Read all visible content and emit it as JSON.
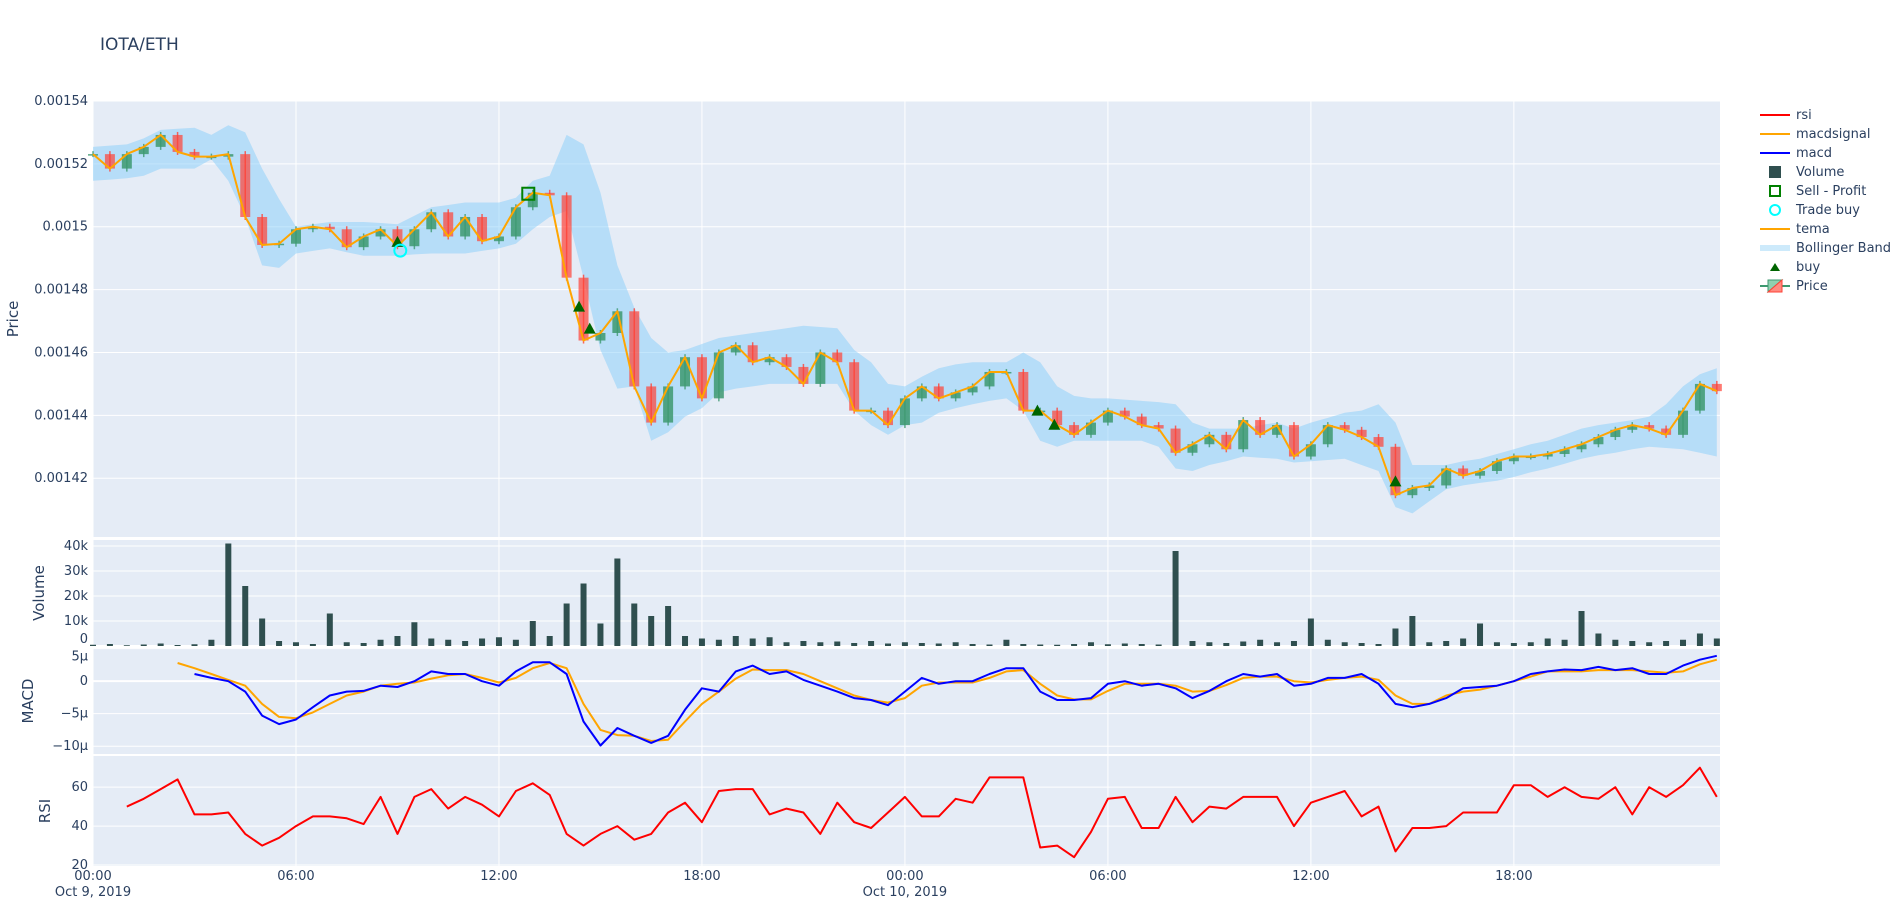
{
  "title": "IOTA/ETH",
  "colors": {
    "plot_bg": "#e5ecf6",
    "grid": "#ffffff",
    "increasing": "#3d9970",
    "decreasing": "#ff4136",
    "tema": "#ffa500",
    "bollinger": "#87cefa",
    "volume": "#2f4f4f",
    "macd": "#0000ff",
    "macdsignal": "#ffa500",
    "rsi": "#ff0000",
    "buy": "#006400",
    "sell": "#008000",
    "trade_buy": "#00ffff"
  },
  "legend": [
    {
      "name": "rsi",
      "icon": "line",
      "color": "#ff0000"
    },
    {
      "name": "macdsignal",
      "icon": "line",
      "color": "#ffa500"
    },
    {
      "name": "macd",
      "icon": "line",
      "color": "#0000ff"
    },
    {
      "name": "Volume",
      "icon": "square-filled",
      "color": "#2f4f4f"
    },
    {
      "name": "Sell - Profit",
      "icon": "square-open",
      "color": "#008000"
    },
    {
      "name": "Trade buy",
      "icon": "circle-open",
      "color": "#00ffff"
    },
    {
      "name": "tema",
      "icon": "line",
      "color": "#ffa500"
    },
    {
      "name": "Bollinger Band",
      "icon": "band",
      "color": "#87cefa"
    },
    {
      "name": "buy",
      "icon": "triangle-up",
      "color": "#006400"
    },
    {
      "name": "Price",
      "icon": "candlestick",
      "color": "#3d9970"
    }
  ],
  "chart_data": {
    "type": "candlestick+line+bar",
    "x_axis": {
      "start": "2019-10-09 00:00",
      "interval_minutes": 30,
      "range": [
        "2019-10-09 00:00",
        "2019-10-10 23:55"
      ],
      "ticks": [
        {
          "t": 0,
          "label": "00:00",
          "sub": "Oct 9, 2019"
        },
        {
          "t": 6,
          "label": "06:00",
          "sub": ""
        },
        {
          "t": 12,
          "label": "12:00",
          "sub": ""
        },
        {
          "t": 18,
          "label": "18:00",
          "sub": ""
        },
        {
          "t": 24,
          "label": "00:00",
          "sub": "Oct 10, 2019"
        },
        {
          "t": 30,
          "label": "06:00",
          "sub": ""
        },
        {
          "t": 36,
          "label": "12:00",
          "sub": ""
        },
        {
          "t": 42,
          "label": "18:00",
          "sub": ""
        }
      ]
    },
    "panels": {
      "price": {
        "ylabel": "Price",
        "ylim": [
          0.0014013,
          0.00154
        ],
        "ticks": [
          {
            "v": 0.00142,
            "label": "0.00142"
          },
          {
            "v": 0.00144,
            "label": "0.00144"
          },
          {
            "v": 0.00146,
            "label": "0.00146"
          },
          {
            "v": 0.00148,
            "label": "0.00148"
          },
          {
            "v": 0.0015,
            "label": "0.0015"
          },
          {
            "v": 0.00152,
            "label": "0.00152"
          },
          {
            "v": 0.00154,
            "label": "0.00154"
          }
        ]
      },
      "volume": {
        "ylabel": "Volume",
        "ylim": [
          0,
          42400
        ],
        "ticks": [
          {
            "v": 0,
            "label": "0"
          },
          {
            "v": 10000,
            "label": "10k"
          },
          {
            "v": 20000,
            "label": "20k"
          },
          {
            "v": 30000,
            "label": "30k"
          },
          {
            "v": 40000,
            "label": "40k"
          }
        ]
      },
      "macd": {
        "ylabel": "MACD",
        "ylim": [
          -1.12e-05,
          5.1e-06
        ],
        "ticks": [
          {
            "v": 5e-06,
            "label": "5µ"
          },
          {
            "v": 0,
            "label": "0"
          },
          {
            "v": -5e-06,
            "label": "−5µ"
          },
          {
            "v": -1e-05,
            "label": "−10µ"
          }
        ]
      },
      "rsi": {
        "ylabel": "RSI",
        "ylim": [
          19.5,
          76
        ],
        "ticks": [
          {
            "v": 20,
            "label": "20"
          },
          {
            "v": 40,
            "label": "40"
          },
          {
            "v": 60,
            "label": "60"
          }
        ]
      }
    },
    "price_close": [
      0.0015231,
      0.0015185,
      0.0015231,
      0.0015254,
      0.0015292,
      0.0015238,
      0.0015223,
      0.0015223,
      0.0015231,
      0.0015031,
      0.0014942,
      0.0014946,
      0.0014992,
      0.0015,
      0.0014992,
      0.0014935,
      0.0014969,
      0.0014992,
      0.0014938,
      0.0014992,
      0.0015046,
      0.0014969,
      0.0015031,
      0.0014954,
      0.0014969,
      0.0015062,
      0.0015108,
      0.00151,
      0.0014838,
      0.0014638,
      0.0014662,
      0.0014731,
      0.0014492,
      0.0014377,
      0.0014492,
      0.0014585,
      0.0014454,
      0.00146,
      0.0014623,
      0.0014569,
      0.0014585,
      0.0014554,
      0.00145,
      0.00146,
      0.0014569,
      0.0014415,
      0.0014415,
      0.0014369,
      0.0014454,
      0.0014492,
      0.0014454,
      0.0014473,
      0.0014492,
      0.0014538,
      0.0014538,
      0.0014415,
      0.0014415,
      0.0014369,
      0.0014338,
      0.0014377,
      0.0014415,
      0.0014396,
      0.0014369,
      0.0014358,
      0.0014281,
      0.0014308,
      0.0014338,
      0.0014292,
      0.0014385,
      0.0014338,
      0.0014369,
      0.0014269,
      0.0014308,
      0.0014369,
      0.0014354,
      0.0014331,
      0.00143,
      0.0014146,
      0.0014169,
      0.0014177,
      0.0014231,
      0.0014208,
      0.0014223,
      0.0014254,
      0.0014269,
      0.0014269,
      0.0014277,
      0.0014292,
      0.0014308,
      0.0014331,
      0.0014354,
      0.0014369,
      0.0014358,
      0.0014338,
      0.0014415,
      0.00145,
      0.0014477
    ],
    "tema": [
      0.0015231,
      0.0015185,
      0.0015231,
      0.0015254,
      0.0015292,
      0.0015238,
      0.0015223,
      0.0015223,
      0.0015231,
      0.0015031,
      0.0014942,
      0.0014946,
      0.0014992,
      0.0015,
      0.0014992,
      0.0014935,
      0.0014969,
      0.0014992,
      0.0014938,
      0.0014992,
      0.0015046,
      0.0014969,
      0.0015031,
      0.0014954,
      0.0014969,
      0.0015062,
      0.0015108,
      0.00151,
      0.0014838,
      0.0014638,
      0.0014662,
      0.0014731,
      0.0014492,
      0.0014377,
      0.0014492,
      0.0014585,
      0.0014454,
      0.00146,
      0.0014623,
      0.0014569,
      0.0014585,
      0.0014554,
      0.00145,
      0.00146,
      0.0014569,
      0.0014415,
      0.0014415,
      0.0014369,
      0.0014454,
      0.0014492,
      0.0014454,
      0.0014473,
      0.0014492,
      0.0014538,
      0.0014538,
      0.0014415,
      0.0014415,
      0.0014369,
      0.0014338,
      0.0014377,
      0.0014415,
      0.0014396,
      0.0014369,
      0.0014358,
      0.0014281,
      0.0014308,
      0.0014338,
      0.0014292,
      0.0014385,
      0.0014338,
      0.0014369,
      0.0014269,
      0.0014308,
      0.0014369,
      0.0014354,
      0.0014331,
      0.00143,
      0.0014146,
      0.0014169,
      0.0014177,
      0.0014231,
      0.0014208,
      0.0014223,
      0.0014254,
      0.0014269,
      0.0014269,
      0.0014277,
      0.0014292,
      0.0014308,
      0.0014331,
      0.0014354,
      0.0014369,
      0.0014358,
      0.0014338,
      0.0014415,
      0.00145,
      0.0014477
    ],
    "bollinger_upper": [
      0.0015254,
      0.0015258,
      0.0015262,
      0.0015281,
      0.0015308,
      0.0015312,
      0.0015315,
      0.0015292,
      0.0015323,
      0.00153,
      0.0015185,
      0.0015088,
      0.0015,
      0.0015008,
      0.0015015,
      0.0015015,
      0.0015015,
      0.0015012,
      0.0015008,
      0.0015035,
      0.0015062,
      0.0015069,
      0.0015077,
      0.0015077,
      0.0015077,
      0.0015092,
      0.0015146,
      0.0015162,
      0.0015292,
      0.0015262,
      0.0015108,
      0.0014877,
      0.0014742,
      0.0014646,
      0.00146,
      0.0014608,
      0.0014627,
      0.0014646,
      0.0014654,
      0.0014662,
      0.0014669,
      0.0014677,
      0.0014685,
      0.0014681,
      0.0014677,
      0.0014608,
      0.0014569,
      0.00145,
      0.0014492,
      0.0014523,
      0.001455,
      0.0014562,
      0.0014569,
      0.0014569,
      0.0014569,
      0.00146,
      0.0014569,
      0.0014492,
      0.0014462,
      0.0014454,
      0.0014454,
      0.001445,
      0.0014446,
      0.0014442,
      0.0014435,
      0.0014377,
      0.0014358,
      0.0014358,
      0.0014358,
      0.0014369,
      0.0014377,
      0.0014358,
      0.0014377,
      0.0014392,
      0.0014408,
      0.0014415,
      0.0014435,
      0.0014377,
      0.0014242,
      0.0014242,
      0.0014242,
      0.0014254,
      0.0014262,
      0.0014277,
      0.0014292,
      0.0014308,
      0.0014319,
      0.0014338,
      0.0014358,
      0.0014369,
      0.0014377,
      0.0014385,
      0.0014396,
      0.0014435,
      0.0014492,
      0.0014531,
      0.001455
    ],
    "bollinger_lower": [
      0.0015146,
      0.001515,
      0.0015154,
      0.0015162,
      0.0015185,
      0.0015185,
      0.0015185,
      0.0015215,
      0.0015146,
      0.0015031,
      0.0014877,
      0.0014869,
      0.0014915,
      0.0014923,
      0.0014931,
      0.0014919,
      0.0014908,
      0.0014908,
      0.0014908,
      0.0014912,
      0.0014915,
      0.0014915,
      0.0014915,
      0.0014923,
      0.0014931,
      0.0014946,
      0.0014992,
      0.0015031,
      0.001505,
      0.0014838,
      0.0014608,
      0.0014485,
      0.0014492,
      0.0014319,
      0.0014346,
      0.0014396,
      0.0014423,
      0.0014473,
      0.0014485,
      0.0014492,
      0.00145,
      0.00145,
      0.00145,
      0.00145,
      0.00145,
      0.0014415,
      0.0014369,
      0.0014338,
      0.0014369,
      0.0014377,
      0.0014408,
      0.0014423,
      0.0014435,
      0.0014446,
      0.0014454,
      0.0014415,
      0.0014319,
      0.00143,
      0.0014319,
      0.0014319,
      0.0014319,
      0.0014319,
      0.0014319,
      0.00143,
      0.0014231,
      0.0014223,
      0.0014242,
      0.0014254,
      0.0014269,
      0.0014265,
      0.0014262,
      0.001425,
      0.0014254,
      0.0014258,
      0.0014262,
      0.0014242,
      0.0014223,
      0.0014108,
      0.0014088,
      0.0014127,
      0.0014165,
      0.0014177,
      0.0014185,
      0.0014192,
      0.0014204,
      0.0014219,
      0.0014231,
      0.0014246,
      0.0014262,
      0.0014273,
      0.0014281,
      0.0014292,
      0.00143,
      0.0014296,
      0.0014292,
      0.0014281,
      0.0014269
    ],
    "volume": [
      500,
      800,
      300,
      600,
      1000,
      400,
      700,
      2500,
      41000,
      24000,
      11000,
      2000,
      1500,
      800,
      13000,
      1500,
      1200,
      2500,
      4000,
      9500,
      3000,
      2500,
      2000,
      3000,
      3500,
      2500,
      10000,
      4000,
      17000,
      25000,
      9000,
      35000,
      17000,
      12000,
      16000,
      4000,
      3000,
      2500,
      4000,
      3000,
      3500,
      1500,
      2000,
      1500,
      1800,
      1200,
      2000,
      1000,
      1500,
      1200,
      1000,
      1500,
      800,
      600,
      2500,
      800,
      600,
      500,
      800,
      1500,
      700,
      1000,
      800,
      600,
      38000,
      2000,
      1500,
      1200,
      1800,
      2500,
      1500,
      2000,
      11000,
      2500,
      1500,
      1200,
      800,
      7000,
      12000,
      1500,
      2000,
      3000,
      9000,
      1500,
      1200,
      1500,
      3000,
      2500,
      14000,
      5000,
      2500,
      2000,
      1500,
      2000,
      2500,
      5000,
      3000
    ],
    "macd": [
      null,
      null,
      null,
      null,
      null,
      null,
      1.1e-06,
      5e-07,
      0,
      -1.6e-06,
      -5.3e-06,
      -6.6e-06,
      -5.9e-06,
      -4e-06,
      -2.2e-06,
      -1.6e-06,
      -1.5e-06,
      -7e-07,
      -9e-07,
      0,
      1.5e-06,
      1.1e-06,
      1.1e-06,
      0,
      -7e-07,
      1.5e-06,
      2.9e-06,
      2.9e-06,
      1.1e-06,
      -6.2e-06,
      -9.9e-06,
      -7.2e-06,
      -8.4e-06,
      -9.5e-06,
      -8.4e-06,
      -4.4e-06,
      -1.1e-06,
      -1.6e-06,
      1.5e-06,
      2.4e-06,
      1.1e-06,
      1.5e-06,
      2e-07,
      -7e-07,
      -1.6e-06,
      -2.6e-06,
      -2.9e-06,
      -3.7e-06,
      -1.6e-06,
      5e-07,
      -4e-07,
      0,
      0,
      1.1e-06,
      2e-06,
      2e-06,
      -1.6e-06,
      -2.9e-06,
      -2.9e-06,
      -2.6e-06,
      -4e-07,
      0,
      -7e-07,
      -4e-07,
      -1.1e-06,
      -2.6e-06,
      -1.5e-06,
      0,
      1.1e-06,
      7e-07,
      1.1e-06,
      -7e-07,
      -4e-07,
      5e-07,
      5e-07,
      1.1e-06,
      -4e-07,
      -3.5e-06,
      -4e-06,
      -3.5e-06,
      -2.6e-06,
      -1.1e-06,
      -9e-07,
      -7e-07,
      0,
      1.1e-06,
      1.5e-06,
      1.8e-06,
      1.7e-06,
      2.2e-06,
      1.7e-06,
      2e-06,
      1.1e-06,
      1.1e-06,
      2.4e-06,
      3.3e-06,
      3.9e-06
    ],
    "macdsignal": [
      null,
      null,
      null,
      null,
      null,
      2.8e-06,
      2e-06,
      1.1e-06,
      2e-07,
      -7e-07,
      -3.5e-06,
      -5.5e-06,
      -5.7e-06,
      -4.8e-06,
      -3.5e-06,
      -2.2e-06,
      -1.6e-06,
      -7e-07,
      -4e-07,
      -2e-07,
      4e-07,
      9e-07,
      1.1e-06,
      5e-07,
      -2e-07,
      5e-07,
      2e-06,
      2.8e-06,
      2e-06,
      -3.5e-06,
      -7.5e-06,
      -8.3e-06,
      -8.4e-06,
      -9.2e-06,
      -9e-06,
      -6.2e-06,
      -3.5e-06,
      -1.6e-06,
      4e-07,
      1.8e-06,
      1.7e-06,
      1.7e-06,
      1.1e-06,
      0,
      -1.1e-06,
      -2.2e-06,
      -2.9e-06,
      -3.3e-06,
      -2.6e-06,
      -7e-07,
      -2e-07,
      -2e-07,
      -2e-07,
      5e-07,
      1.5e-06,
      1.7e-06,
      -4e-07,
      -2.2e-06,
      -2.8e-06,
      -2.8e-06,
      -1.5e-06,
      -4e-07,
      -4e-07,
      -4e-07,
      -7e-07,
      -1.6e-06,
      -1.5e-06,
      -6e-07,
      5e-07,
      7e-07,
      7e-07,
      0,
      -2e-07,
      2e-07,
      5e-07,
      7e-07,
      2e-07,
      -2.2e-06,
      -3.5e-06,
      -3.5e-06,
      -2.2e-06,
      -1.6e-06,
      -1.3e-06,
      -7e-07,
      0,
      7e-07,
      1.5e-06,
      1.5e-06,
      1.5e-06,
      1.7e-06,
      1.7e-06,
      1.7e-06,
      1.5e-06,
      1.3e-06,
      1.5e-06,
      2.6e-06,
      3.3e-06
    ],
    "rsi": [
      null,
      null,
      50,
      54,
      59,
      64,
      46,
      46,
      47,
      36,
      30,
      34,
      40,
      45,
      45,
      44,
      41,
      55,
      36,
      55,
      59,
      49,
      55,
      51,
      45,
      58,
      62,
      56,
      36,
      30,
      36,
      40,
      33,
      36,
      47,
      52,
      42,
      58,
      59,
      59,
      46,
      49,
      47,
      36,
      52,
      42,
      39,
      47,
      55,
      45,
      45,
      54,
      52,
      65,
      65,
      65,
      29,
      30,
      24,
      37,
      54,
      55,
      39,
      39,
      55,
      42,
      50,
      49,
      55,
      55,
      55,
      40,
      52,
      55,
      58,
      45,
      50,
      27,
      39,
      39,
      40,
      47,
      47,
      47,
      61,
      61,
      55,
      60,
      55,
      54,
      60,
      46,
      60,
      55,
      61,
      70,
      55
    ],
    "buy_markers": [
      {
        "time": "2019-10-09 09:00",
        "price": 0.0014952
      },
      {
        "time": "2019-10-09 14:22",
        "price": 0.0014746
      },
      {
        "time": "2019-10-09 14:41",
        "price": 0.0014676
      },
      {
        "time": "2019-10-10 03:55",
        "price": 0.0014415
      },
      {
        "time": "2019-10-10 04:25",
        "price": 0.001437
      },
      {
        "time": "2019-10-10 14:30",
        "price": 0.001419
      }
    ],
    "trade_buy_markers": [
      {
        "time": "2019-10-09 09:05",
        "price": 0.0014924
      }
    ],
    "sell_profit_markers": [
      {
        "time": "2019-10-09 12:52",
        "price": 0.0015105
      }
    ]
  }
}
